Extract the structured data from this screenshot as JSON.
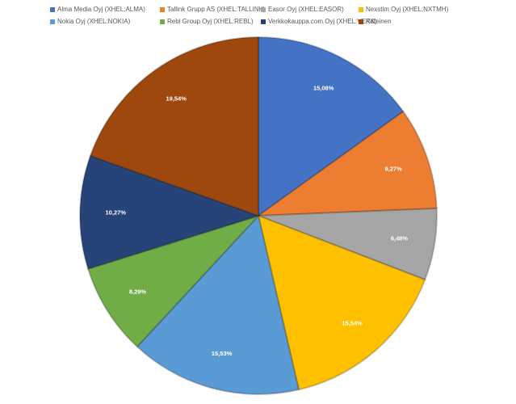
{
  "chart_data": {
    "type": "pie",
    "categories": [
      "Alma Media Oyj (XHEL:ALMA)",
      "Tallink Grupp AS (XHEL:TALLINK)",
      "Easor Oyj (XHEL:EASOR)",
      "Nexstim Oyj (XHEL:NXTMH)",
      "Nokia Oyj (XHEL:NOKIA)",
      "Rebl Group Oyj (XHEL:REBL)",
      "Verkkokauppa.com Oyj (XHEL:VERK)",
      "Käteinen"
    ],
    "values": [
      15.08,
      9.27,
      6.48,
      15.54,
      15.53,
      8.29,
      10.27,
      19.54
    ],
    "value_labels": [
      "15,08%",
      "9,27%",
      "6,48%",
      "15,54%",
      "15,53%",
      "8,29%",
      "10,27%",
      "19,54%"
    ],
    "colors": [
      "#4472c4",
      "#ed7d31",
      "#a5a5a5",
      "#ffc000",
      "#5b9bd5",
      "#70ad47",
      "#264478",
      "#9e480e"
    ],
    "legend": "top"
  }
}
